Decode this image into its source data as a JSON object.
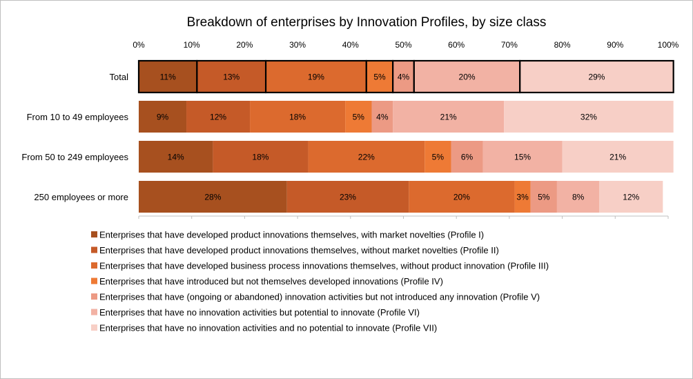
{
  "chart_data": {
    "type": "bar",
    "orientation": "horizontal",
    "stacked": true,
    "title": "Breakdown of enterprises by Innovation Profiles, by size class",
    "xlim": [
      0,
      100
    ],
    "x_ticks": [
      "0%",
      "10%",
      "20%",
      "30%",
      "40%",
      "50%",
      "60%",
      "70%",
      "80%",
      "90%",
      "100%"
    ],
    "categories": [
      "Total",
      "From 10 to 49 employees",
      "From 50 to 249 employees",
      "250 employees or more"
    ],
    "series": [
      {
        "name": "Enterprises that have developed product innovations themselves, with market novelties (Profile I)",
        "color": "#a7501f",
        "label_color": "#ffffff",
        "values": [
          11,
          9,
          14,
          28
        ],
        "labels": [
          "11%",
          "9%",
          "14%",
          "28%"
        ]
      },
      {
        "name": "Enterprises that have developed product innovations themselves, without market novelties (Profile II)",
        "color": "#c55a28",
        "label_color": "#ffffff",
        "values": [
          13,
          12,
          18,
          23
        ],
        "labels": [
          "13%",
          "12%",
          "18%",
          "23%"
        ]
      },
      {
        "name": "Enterprises that have developed business process innovations themselves, without product innovation (Profile III)",
        "color": "#dc6a2e",
        "label_color": "#ffffff",
        "values": [
          19,
          18,
          22,
          20
        ],
        "labels": [
          "19%",
          "18%",
          "22%",
          "20%"
        ]
      },
      {
        "name": "Enterprises that have introduced but not themselves developed innovations (Profile IV)",
        "color": "#ee7a35",
        "label_color": "#ffffff",
        "values": [
          5,
          5,
          5,
          3
        ],
        "labels": [
          "5%",
          "5%",
          "5%",
          "3%"
        ]
      },
      {
        "name": "Enterprises that have (ongoing or abandoned) innovation activities but not introduced any innovation (Profile V)",
        "color": "#ec9a84",
        "label_color": "#ffffff",
        "values": [
          4,
          4,
          6,
          5
        ],
        "labels": [
          "4%",
          "4%",
          "6%",
          "5%"
        ]
      },
      {
        "name": "Enterprises that have no innovation activities but potential to innovate (Profile VI)",
        "color": "#f2b2a4",
        "label_color": "#000000",
        "values": [
          20,
          21,
          15,
          8
        ],
        "labels": [
          "20%",
          "21%",
          "15%",
          "8%"
        ]
      },
      {
        "name": "Enterprises that have no innovation activities and no potential to innovate (Profile VII)",
        "color": "#f7cfc6",
        "label_color": "#000000",
        "values": [
          29,
          32,
          21,
          12
        ],
        "labels": [
          "29%",
          "32%",
          "21%",
          "12%"
        ]
      }
    ],
    "highlighted_category": "Total",
    "legend_position": "bottom",
    "grid": false
  }
}
